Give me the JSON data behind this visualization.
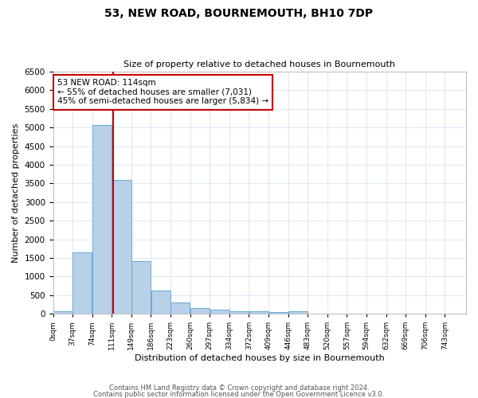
{
  "title": "53, NEW ROAD, BOURNEMOUTH, BH10 7DP",
  "subtitle": "Size of property relative to detached houses in Bournemouth",
  "xlabel": "Distribution of detached houses by size in Bournemouth",
  "ylabel": "Number of detached properties",
  "bin_labels": [
    "0sqm",
    "37sqm",
    "74sqm",
    "111sqm",
    "149sqm",
    "186sqm",
    "223sqm",
    "260sqm",
    "297sqm",
    "334sqm",
    "372sqm",
    "409sqm",
    "446sqm",
    "483sqm",
    "520sqm",
    "557sqm",
    "594sqm",
    "632sqm",
    "669sqm",
    "706sqm",
    "743sqm"
  ],
  "bar_heights": [
    75,
    1650,
    5070,
    3600,
    1420,
    620,
    290,
    145,
    110,
    75,
    55,
    45,
    55,
    0,
    0,
    0,
    0,
    0,
    0,
    0
  ],
  "bar_color": "#b8d0e8",
  "bar_edge_color": "#6aaad4",
  "grid_color": "#d8e4f0",
  "property_line_x": 114,
  "property_line_color": "#cc0000",
  "annotation_text": "53 NEW ROAD: 114sqm\n← 55% of detached houses are smaller (7,031)\n45% of semi-detached houses are larger (5,834) →",
  "annotation_box_color": "#cc0000",
  "xlim_min": 0,
  "xlim_max": 780,
  "ylim_min": 0,
  "ylim_max": 6500,
  "bin_width": 37,
  "yticks": [
    0,
    500,
    1000,
    1500,
    2000,
    2500,
    3000,
    3500,
    4000,
    4500,
    5000,
    5500,
    6000,
    6500
  ],
  "footer_line1": "Contains HM Land Registry data © Crown copyright and database right 2024.",
  "footer_line2": "Contains public sector information licensed under the Open Government Licence v3.0."
}
